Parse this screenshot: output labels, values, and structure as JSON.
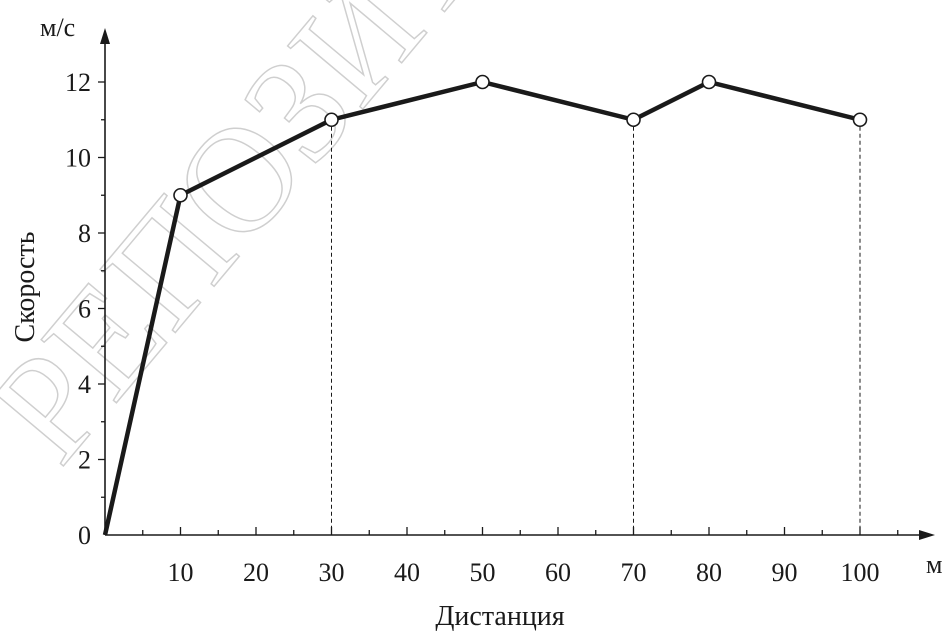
{
  "watermark": "РЕПОЗИТОРИЙ",
  "chart_data": {
    "type": "line",
    "x": [
      0,
      10,
      30,
      50,
      70,
      80,
      100
    ],
    "values": [
      0,
      9,
      11,
      12,
      11,
      12,
      11
    ],
    "marked_points": [
      10,
      30,
      50,
      70,
      80,
      100
    ],
    "dashed_drop_lines_at": [
      30,
      70,
      100
    ],
    "xlabel": "Дистанция",
    "ylabel": "Скорость",
    "x_unit": "м",
    "y_unit": "м/с",
    "xlim": [
      0,
      110
    ],
    "ylim": [
      0,
      12
    ],
    "x_ticks": [
      10,
      20,
      30,
      40,
      50,
      60,
      70,
      80,
      90,
      100
    ],
    "y_ticks": [
      0,
      2,
      4,
      6,
      8,
      10,
      12
    ],
    "grid": false,
    "line_color": "#1a1a1a"
  }
}
